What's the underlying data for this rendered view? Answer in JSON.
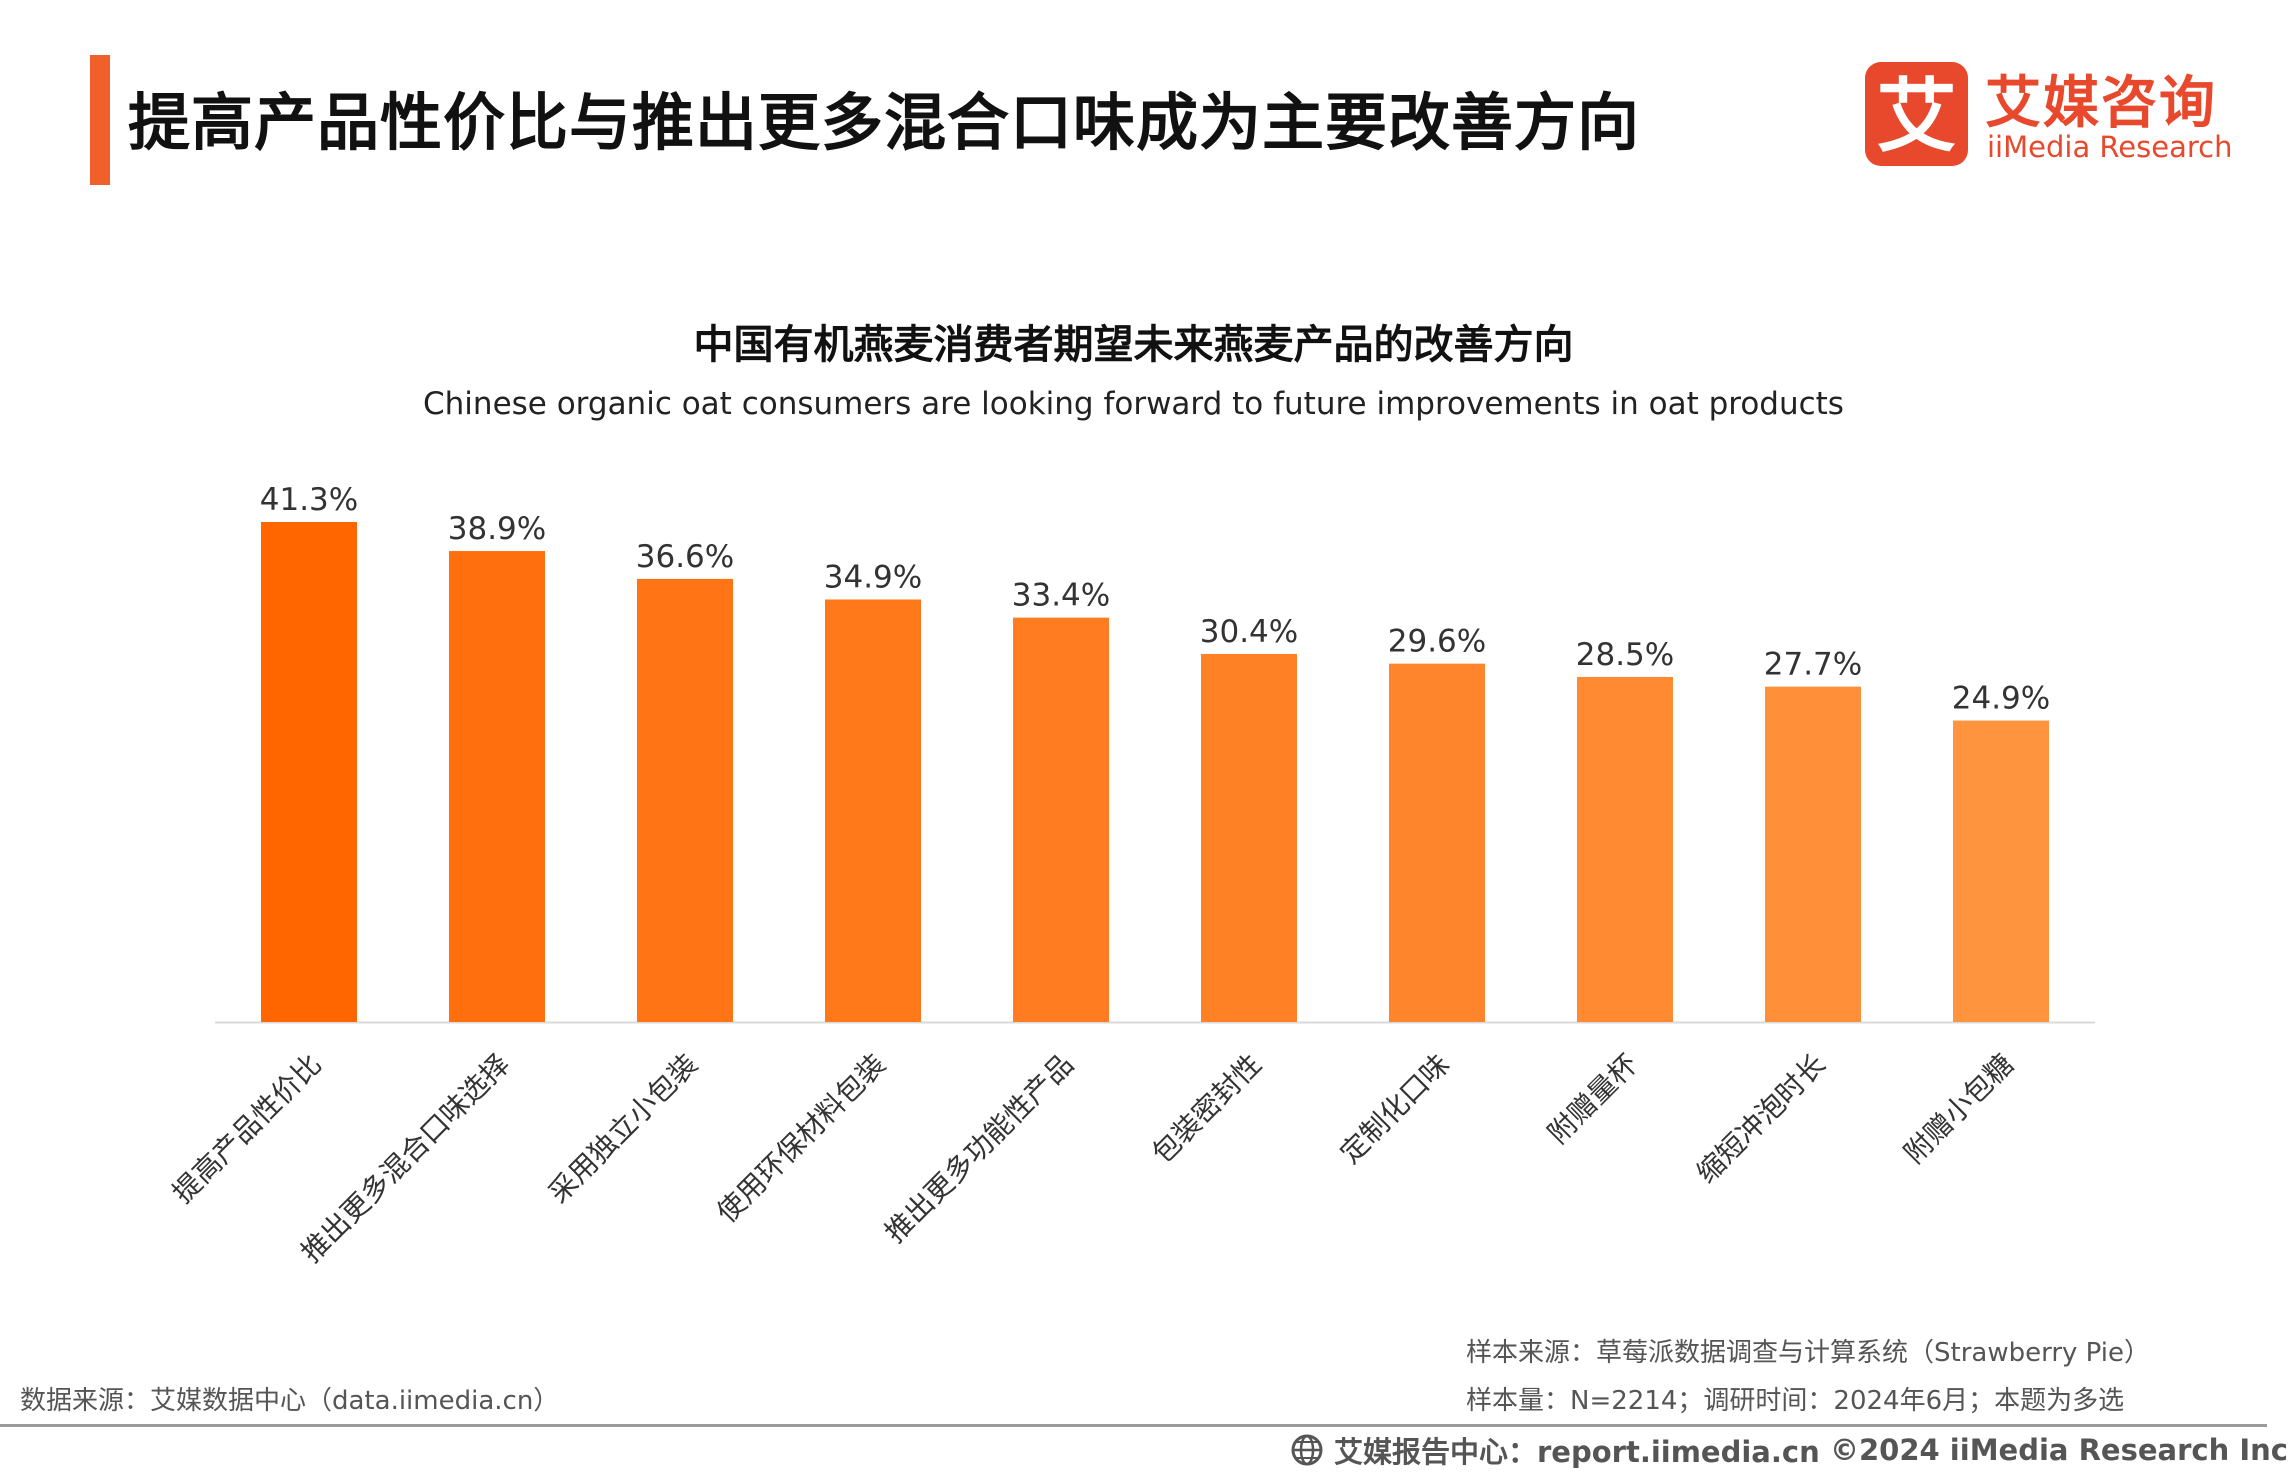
{
  "header": {
    "title": "提高产品性价比与推出更多混合口味成为主要改善方向",
    "accent_color": "#f0602a"
  },
  "logo": {
    "cn": "艾媒咨询",
    "en": "iiMedia Research",
    "mark_char": "艾",
    "color": "#e8492c"
  },
  "chart_data": {
    "type": "bar",
    "title": "中国有机燕麦消费者期望未来燕麦产品的改善方向",
    "subtitle": "Chinese organic oat consumers are looking forward to future improvements in oat products",
    "categories": [
      "提高产品性价比",
      "推出更多混合口味选择",
      "采用独立小包装",
      "使用环保材料包装",
      "推出更多功能性产品",
      "包装密封性",
      "定制化口味",
      "附赠量杯",
      "缩短冲泡时长",
      "附赠小包糖"
    ],
    "values": [
      41.3,
      38.9,
      36.6,
      34.9,
      33.4,
      30.4,
      29.6,
      28.5,
      27.7,
      24.9
    ],
    "value_labels": [
      "41.3%",
      "38.9%",
      "36.6%",
      "34.9%",
      "33.4%",
      "30.4%",
      "29.6%",
      "28.5%",
      "27.7%",
      "24.9%"
    ],
    "unit": "%",
    "ylim": [
      0,
      42
    ],
    "colors": [
      "#ff6600",
      "#ff6f0d",
      "#ff7515",
      "#ff791b",
      "#ff7d20",
      "#ff8126",
      "#ff852c",
      "#ff8a32",
      "#ff8f38",
      "#ff943e"
    ],
    "grid": false,
    "legend": "none",
    "xlabel": "",
    "ylabel": ""
  },
  "sources": {
    "left": "数据来源：艾媒数据中心（data.iimedia.cn）",
    "right_line1": "样本来源：草莓派数据调查与计算系统（Strawberry Pie）",
    "right_line2": "样本量：N=2214；调研时间：2024年6月；本题为多选"
  },
  "footer": {
    "report": "艾媒报告中心：report.iimedia.cn",
    "copyright": "©2024  iiMedia Research Inc",
    "icon": "globe-icon"
  }
}
